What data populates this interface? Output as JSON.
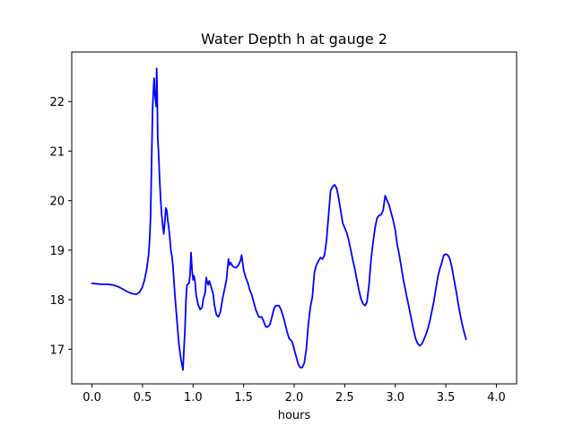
{
  "chart_data": {
    "type": "line",
    "title": "Water Depth h at gauge 2",
    "xlabel": "hours",
    "ylabel": "",
    "xlim": [
      -0.2,
      4.2
    ],
    "ylim": [
      16.3,
      23.0
    ],
    "xticks": [
      0.0,
      0.5,
      1.0,
      1.5,
      2.0,
      2.5,
      3.0,
      3.5,
      4.0
    ],
    "xtick_labels": [
      "0.0",
      "0.5",
      "1.0",
      "1.5",
      "2.0",
      "2.5",
      "3.0",
      "3.5",
      "4.0"
    ],
    "yticks": [
      17,
      18,
      19,
      20,
      21,
      22
    ],
    "ytick_labels": [
      "17",
      "18",
      "19",
      "20",
      "21",
      "22"
    ],
    "grid": false,
    "series": [
      {
        "color": "#0000ff",
        "points": [
          [
            0.0,
            18.33
          ],
          [
            0.05,
            18.32
          ],
          [
            0.1,
            18.31
          ],
          [
            0.15,
            18.31
          ],
          [
            0.2,
            18.3
          ],
          [
            0.25,
            18.27
          ],
          [
            0.3,
            18.22
          ],
          [
            0.35,
            18.16
          ],
          [
            0.4,
            18.12
          ],
          [
            0.44,
            18.11
          ],
          [
            0.47,
            18.15
          ],
          [
            0.5,
            18.26
          ],
          [
            0.52,
            18.4
          ],
          [
            0.54,
            18.6
          ],
          [
            0.56,
            18.9
          ],
          [
            0.57,
            19.2
          ],
          [
            0.58,
            19.7
          ],
          [
            0.59,
            20.8
          ],
          [
            0.6,
            21.9
          ],
          [
            0.61,
            22.3
          ],
          [
            0.615,
            22.47
          ],
          [
            0.62,
            22.2
          ],
          [
            0.63,
            22.0
          ],
          [
            0.635,
            21.9
          ],
          [
            0.64,
            22.67
          ],
          [
            0.645,
            22.2
          ],
          [
            0.65,
            21.3
          ],
          [
            0.66,
            20.9
          ],
          [
            0.67,
            20.4
          ],
          [
            0.68,
            20.0
          ],
          [
            0.69,
            19.7
          ],
          [
            0.7,
            19.5
          ],
          [
            0.71,
            19.33
          ],
          [
            0.72,
            19.55
          ],
          [
            0.73,
            19.85
          ],
          [
            0.74,
            19.8
          ],
          [
            0.75,
            19.6
          ],
          [
            0.76,
            19.45
          ],
          [
            0.77,
            19.25
          ],
          [
            0.78,
            19.0
          ],
          [
            0.79,
            18.9
          ],
          [
            0.8,
            18.7
          ],
          [
            0.82,
            18.1
          ],
          [
            0.84,
            17.6
          ],
          [
            0.86,
            17.1
          ],
          [
            0.88,
            16.8
          ],
          [
            0.9,
            16.58
          ],
          [
            0.91,
            17.0
          ],
          [
            0.92,
            17.4
          ],
          [
            0.93,
            18.0
          ],
          [
            0.94,
            18.3
          ],
          [
            0.96,
            18.33
          ],
          [
            0.97,
            18.5
          ],
          [
            0.98,
            18.95
          ],
          [
            0.99,
            18.6
          ],
          [
            1.0,
            18.4
          ],
          [
            1.01,
            18.48
          ],
          [
            1.02,
            18.35
          ],
          [
            1.03,
            18.1
          ],
          [
            1.05,
            17.9
          ],
          [
            1.07,
            17.8
          ],
          [
            1.09,
            17.85
          ],
          [
            1.1,
            18.0
          ],
          [
            1.12,
            18.15
          ],
          [
            1.13,
            18.45
          ],
          [
            1.14,
            18.35
          ],
          [
            1.15,
            18.3
          ],
          [
            1.16,
            18.38
          ],
          [
            1.18,
            18.25
          ],
          [
            1.2,
            18.1
          ],
          [
            1.21,
            17.9
          ],
          [
            1.23,
            17.7
          ],
          [
            1.25,
            17.65
          ],
          [
            1.27,
            17.75
          ],
          [
            1.29,
            18.0
          ],
          [
            1.31,
            18.2
          ],
          [
            1.33,
            18.4
          ],
          [
            1.35,
            18.82
          ],
          [
            1.36,
            18.7
          ],
          [
            1.37,
            18.75
          ],
          [
            1.39,
            18.68
          ],
          [
            1.41,
            18.65
          ],
          [
            1.43,
            18.65
          ],
          [
            1.45,
            18.7
          ],
          [
            1.47,
            18.8
          ],
          [
            1.48,
            18.9
          ],
          [
            1.49,
            18.75
          ],
          [
            1.5,
            18.6
          ],
          [
            1.52,
            18.45
          ],
          [
            1.54,
            18.35
          ],
          [
            1.56,
            18.2
          ],
          [
            1.58,
            18.1
          ],
          [
            1.6,
            17.95
          ],
          [
            1.62,
            17.8
          ],
          [
            1.65,
            17.65
          ],
          [
            1.68,
            17.65
          ],
          [
            1.7,
            17.55
          ],
          [
            1.72,
            17.45
          ],
          [
            1.74,
            17.45
          ],
          [
            1.76,
            17.5
          ],
          [
            1.78,
            17.65
          ],
          [
            1.8,
            17.82
          ],
          [
            1.82,
            17.88
          ],
          [
            1.85,
            17.88
          ],
          [
            1.87,
            17.8
          ],
          [
            1.9,
            17.6
          ],
          [
            1.93,
            17.35
          ],
          [
            1.95,
            17.22
          ],
          [
            1.98,
            17.15
          ],
          [
            2.0,
            17.0
          ],
          [
            2.02,
            16.85
          ],
          [
            2.04,
            16.7
          ],
          [
            2.06,
            16.63
          ],
          [
            2.08,
            16.63
          ],
          [
            2.1,
            16.72
          ],
          [
            2.12,
            17.0
          ],
          [
            2.14,
            17.5
          ],
          [
            2.16,
            17.85
          ],
          [
            2.18,
            18.05
          ],
          [
            2.2,
            18.55
          ],
          [
            2.22,
            18.7
          ],
          [
            2.24,
            18.78
          ],
          [
            2.26,
            18.85
          ],
          [
            2.28,
            18.82
          ],
          [
            2.3,
            18.9
          ],
          [
            2.32,
            19.2
          ],
          [
            2.34,
            19.7
          ],
          [
            2.36,
            20.2
          ],
          [
            2.38,
            20.28
          ],
          [
            2.4,
            20.32
          ],
          [
            2.42,
            20.25
          ],
          [
            2.44,
            20.05
          ],
          [
            2.46,
            19.8
          ],
          [
            2.48,
            19.55
          ],
          [
            2.5,
            19.45
          ],
          [
            2.52,
            19.35
          ],
          [
            2.54,
            19.2
          ],
          [
            2.56,
            19.0
          ],
          [
            2.58,
            18.8
          ],
          [
            2.6,
            18.62
          ],
          [
            2.62,
            18.4
          ],
          [
            2.64,
            18.2
          ],
          [
            2.66,
            18.02
          ],
          [
            2.68,
            17.92
          ],
          [
            2.7,
            17.88
          ],
          [
            2.72,
            17.95
          ],
          [
            2.74,
            18.3
          ],
          [
            2.76,
            18.8
          ],
          [
            2.78,
            19.15
          ],
          [
            2.8,
            19.45
          ],
          [
            2.82,
            19.65
          ],
          [
            2.84,
            19.7
          ],
          [
            2.86,
            19.72
          ],
          [
            2.88,
            19.8
          ],
          [
            2.9,
            20.1
          ],
          [
            2.92,
            20.0
          ],
          [
            2.94,
            19.9
          ],
          [
            2.96,
            19.75
          ],
          [
            2.98,
            19.6
          ],
          [
            3.0,
            19.4
          ],
          [
            3.02,
            19.1
          ],
          [
            3.04,
            18.9
          ],
          [
            3.06,
            18.65
          ],
          [
            3.08,
            18.4
          ],
          [
            3.1,
            18.2
          ],
          [
            3.12,
            18.0
          ],
          [
            3.14,
            17.8
          ],
          [
            3.16,
            17.6
          ],
          [
            3.18,
            17.4
          ],
          [
            3.2,
            17.22
          ],
          [
            3.22,
            17.12
          ],
          [
            3.24,
            17.07
          ],
          [
            3.26,
            17.1
          ],
          [
            3.28,
            17.18
          ],
          [
            3.3,
            17.28
          ],
          [
            3.32,
            17.4
          ],
          [
            3.34,
            17.55
          ],
          [
            3.36,
            17.75
          ],
          [
            3.38,
            17.95
          ],
          [
            3.4,
            18.2
          ],
          [
            3.42,
            18.45
          ],
          [
            3.44,
            18.62
          ],
          [
            3.46,
            18.75
          ],
          [
            3.48,
            18.9
          ],
          [
            3.5,
            18.92
          ],
          [
            3.52,
            18.9
          ],
          [
            3.54,
            18.82
          ],
          [
            3.56,
            18.65
          ],
          [
            3.58,
            18.42
          ],
          [
            3.6,
            18.2
          ],
          [
            3.62,
            17.95
          ],
          [
            3.64,
            17.72
          ],
          [
            3.66,
            17.52
          ],
          [
            3.68,
            17.35
          ],
          [
            3.7,
            17.2
          ]
        ]
      }
    ]
  }
}
